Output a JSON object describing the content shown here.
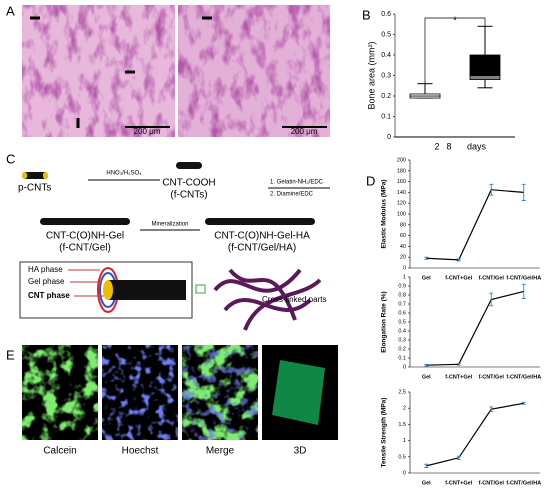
{
  "panel_labels": [
    "A",
    "B",
    "C",
    "D",
    "E"
  ],
  "panel_a": {
    "scale_bars": [
      "200 μm",
      "200 μm"
    ]
  },
  "diagram": {
    "p_cnts": "p-CNTs",
    "acid": "HNO₃/H₂SO₄",
    "cnt_cooh": "CNT-COOH",
    "f_cnts": "(f-CNTs)",
    "step1": "1. Gelatin-NH₂/EDC",
    "step2": "2. Diamine/EDC",
    "cnt_gel": "CNT-C(O)NH-Gel",
    "f_cnt_gel": "(f-CNT/Gel)",
    "mineralization": "Mineralization",
    "cnt_gel_ha": "CNT-C(O)NH-Gel-HA",
    "f_cnt_gel_ha": "(f-CNT/Gel/HA)",
    "ha_phase": "HA phase",
    "gel_phase": "Gel phase",
    "cnt_phase": "CNT phase",
    "cross_linked": "Cross-linked parts"
  },
  "panel_e": {
    "captions": [
      "Calcein",
      "Hoechst",
      "Merge",
      "3D"
    ]
  },
  "chart_data": [
    {
      "type": "box",
      "ylabel": "Bone area (mm²)",
      "xlabel": "days",
      "categories": [
        "2",
        "8"
      ],
      "min": [
        0.19,
        0.24
      ],
      "q1": [
        0.19,
        0.28
      ],
      "median": [
        0.2,
        0.3
      ],
      "q3": [
        0.21,
        0.4
      ],
      "max": [
        0.26,
        0.54
      ],
      "lower_colors": [
        "#ffffff",
        "#808080"
      ],
      "upper_colors": [
        "#ffffff",
        "#000000"
      ],
      "annotation": "*",
      "ylim": [
        0,
        0.6
      ],
      "yticks": [
        0,
        0.1,
        0.2,
        0.3,
        0.4,
        0.5,
        0.6
      ]
    },
    {
      "type": "line",
      "ylabel": "Elastic Modulus (MPa)",
      "categories": [
        "Gel",
        "f-CNT+Gel",
        "f-CNT/Gel",
        "f-CNT/Gel/HA"
      ],
      "values": [
        18,
        15,
        145,
        140
      ],
      "errors": [
        2,
        2,
        10,
        15
      ],
      "color": "#000000",
      "error_color": "#3a7fd0",
      "ylim": [
        0,
        200
      ],
      "yticks": [
        0,
        20,
        40,
        60,
        80,
        100,
        120,
        140,
        160,
        180,
        200
      ]
    },
    {
      "type": "line",
      "ylabel": "Elongation Rate (%)",
      "categories": [
        "Gel",
        "f-CNT+Gel",
        "f-CNT/Gel",
        "f-CNT/Gel/HA"
      ],
      "values": [
        0.02,
        0.03,
        0.75,
        0.84
      ],
      "errors": [
        0.01,
        0.01,
        0.07,
        0.08
      ],
      "color": "#000000",
      "error_color": "#3a7fd0",
      "ylim": [
        0,
        1
      ],
      "yticks": [
        0,
        0.1,
        0.2,
        0.3,
        0.4,
        0.5,
        0.6,
        0.7,
        0.8,
        0.9,
        1
      ]
    },
    {
      "type": "line",
      "ylabel": "Tensile Strength (MPa)",
      "categories": [
        "Gel",
        "f-CNT+Gel",
        "f-CNT/Gel",
        "f-CNT/Gel/HA"
      ],
      "values": [
        0.22,
        0.47,
        1.97,
        2.15
      ],
      "errors": [
        0.05,
        0.05,
        0.07,
        0.03
      ],
      "color": "#000000",
      "error_color": "#3a7fd0",
      "ylim": [
        0,
        2.5
      ],
      "yticks": [
        0,
        0.5,
        1,
        1.5,
        2,
        2.5
      ]
    }
  ]
}
